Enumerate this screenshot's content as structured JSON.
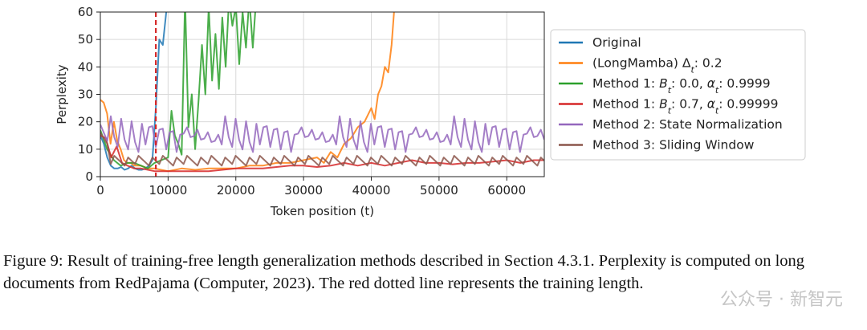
{
  "chart_data": {
    "type": "line",
    "xlabel": "Token position (t)",
    "ylabel": "Perplexity",
    "xlim": [
      0,
      65536
    ],
    "ylim": [
      0,
      60
    ],
    "xticks": [
      0,
      10000,
      20000,
      30000,
      40000,
      50000,
      60000
    ],
    "xtick_labels": [
      "0",
      "10000",
      "20000",
      "30000",
      "40000",
      "50000",
      "60000"
    ],
    "yticks": [
      0,
      10,
      20,
      30,
      40,
      50,
      60
    ],
    "ytick_labels": [
      "0",
      "10",
      "20",
      "30",
      "40",
      "50",
      "60"
    ],
    "grid": true,
    "legend_position": "right",
    "training_length": 8192,
    "training_length_color": "#d62728",
    "series": [
      {
        "name": "Original",
        "color": "#1f77b4",
        "x": [
          0,
          512,
          1024,
          1536,
          2048,
          2560,
          3072,
          3584,
          4096,
          4608,
          5120,
          5632,
          6144,
          6656,
          7168,
          7680,
          8192,
          8704,
          9216,
          9728,
          10240
        ],
        "y": [
          15,
          12,
          7,
          4,
          3,
          3,
          3.5,
          2.5,
          3,
          4,
          3,
          2.5,
          2.5,
          3,
          4,
          6,
          25,
          50,
          48,
          60,
          65
        ]
      },
      {
        "name": "(LongMamba) Δt: 0.2",
        "color": "#ff7f0e",
        "x": [
          0,
          500,
          1000,
          1500,
          2000,
          2500,
          3000,
          3500,
          4000,
          4500,
          5000,
          6000,
          7000,
          8000,
          10000,
          12000,
          14000,
          16000,
          18000,
          20000,
          22000,
          24000,
          26000,
          28000,
          30000,
          32000,
          33000,
          34000,
          35000,
          36000,
          37000,
          38000,
          39000,
          40000,
          40500,
          41000,
          41500,
          42000,
          42500,
          43000,
          43500
        ],
        "y": [
          28,
          27,
          23,
          12,
          20,
          13,
          10,
          6,
          5,
          5,
          4,
          4,
          3,
          3,
          2,
          3,
          2.5,
          3,
          3,
          3,
          4,
          4,
          5,
          5,
          6,
          7,
          5,
          9,
          7,
          12,
          14,
          18,
          20,
          25,
          21,
          30,
          33,
          40,
          38,
          48,
          65
        ]
      },
      {
        "name": "Method 1: Bt: 0.0, αt: 0.9999",
        "color": "#2ca02c",
        "x": [
          0,
          1000,
          2000,
          3000,
          4000,
          5000,
          6000,
          7000,
          8000,
          9000,
          10000,
          10500,
          11000,
          11500,
          12000,
          12500,
          13000,
          13500,
          14000,
          14500,
          15000,
          15500,
          16000,
          16500,
          17000,
          17500,
          18000,
          18500,
          19000,
          19500,
          20000,
          20500,
          21000,
          21500,
          22000,
          22500,
          23000
        ],
        "y": [
          17,
          10,
          6,
          4,
          5,
          5,
          4,
          3,
          5,
          6,
          7,
          24,
          15,
          12,
          8,
          65,
          18,
          30,
          10,
          28,
          48,
          30,
          62,
          35,
          52,
          32,
          58,
          40,
          65,
          55,
          62,
          41,
          60,
          47,
          65,
          47,
          65
        ]
      },
      {
        "name": "Method 1: Bt: 0.7, αt: 0.99999",
        "color": "#d62728",
        "x": [
          0,
          800,
          1600,
          2400,
          3200,
          4000,
          5000,
          6000,
          8000,
          10000,
          12000,
          14000,
          16000,
          18000,
          20000,
          22000,
          24000,
          26000,
          28000,
          30000,
          32000,
          34000,
          36000,
          38000,
          40000,
          42000,
          44000,
          46000,
          48000,
          50000,
          52000,
          54000,
          56000,
          58000,
          60000,
          62000,
          64000,
          65536
        ],
        "y": [
          15,
          14,
          7,
          11,
          5,
          4,
          3,
          3,
          2,
          2,
          2,
          2,
          2,
          2.5,
          3,
          3,
          3,
          3.5,
          4,
          4,
          3.5,
          4,
          5,
          4,
          5,
          4,
          5,
          6,
          5,
          5,
          4.5,
          5,
          5,
          5.5,
          6,
          5,
          6,
          6
        ]
      },
      {
        "name": "Method 2: State Normalization",
        "color": "#9467bd",
        "x": [],
        "y": []
      },
      {
        "name": "Method 3: Sliding Window",
        "color": "#8c564b",
        "x": [],
        "y": []
      }
    ]
  },
  "legend": {
    "items": [
      {
        "prefix": "Original",
        "var": "",
        "sub": "",
        "rest": ""
      },
      {
        "prefix": "(LongMamba) Δ",
        "var": "",
        "sub": "t",
        "rest": ": 0.2"
      },
      {
        "prefix": "Method 1: ",
        "var": "B",
        "sub": "t",
        "rest": ": 0.0, ",
        "var2": "α",
        "sub2": "t",
        "rest2": ": 0.9999"
      },
      {
        "prefix": "Method 1: ",
        "var": "B",
        "sub": "t",
        "rest": ": 0.7, ",
        "var2": "α",
        "sub2": "t",
        "rest2": ": 0.99999"
      },
      {
        "prefix": "Method 2: State Normalization",
        "var": "",
        "sub": "",
        "rest": ""
      },
      {
        "prefix": "Method 3: Sliding Window",
        "var": "",
        "sub": "",
        "rest": ""
      }
    ]
  },
  "caption": "Figure 9: Result of training-free length generalization methods described in Section 4.3.1. Perplexity is computed on long documents from RedPajama (Computer, 2023). The red dotted line represents the training length.",
  "watermark": "公众号 · 新智元"
}
